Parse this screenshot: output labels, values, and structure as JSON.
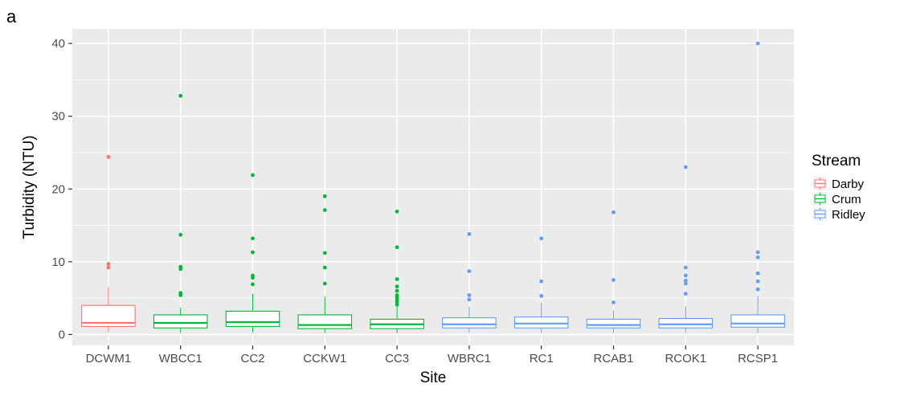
{
  "panel_label": "a",
  "chart_data": {
    "type": "box",
    "xlabel": "Site",
    "ylabel": "Turbidity (NTU)",
    "ylim": [
      -1.5,
      42
    ],
    "yticks": [
      0,
      10,
      20,
      30,
      40
    ],
    "grid": true,
    "legend": {
      "title": "Stream",
      "position": "right",
      "entries": [
        {
          "name": "Darby",
          "color": "#F8766D"
        },
        {
          "name": "Crum",
          "color": "#00BA38"
        },
        {
          "name": "Ridley",
          "color": "#619CFF"
        }
      ]
    },
    "categories": [
      "DCWM1",
      "WBCC1",
      "CC2",
      "CCKW1",
      "CC3",
      "WBRC1",
      "RC1",
      "RCAB1",
      "RCOK1",
      "RCSP1"
    ],
    "boxes": [
      {
        "site": "DCWM1",
        "stream": "Darby",
        "q1": 1.1,
        "median": 1.6,
        "q3": 4.0,
        "whisker_low": 0.3,
        "whisker_high": 6.5,
        "outliers": [
          9.2,
          9.7,
          24.4
        ]
      },
      {
        "site": "WBCC1",
        "stream": "Crum",
        "q1": 0.9,
        "median": 1.6,
        "q3": 2.7,
        "whisker_low": 0.2,
        "whisker_high": 3.7,
        "outliers": [
          5.4,
          5.7,
          9.0,
          9.3,
          13.7,
          32.8
        ]
      },
      {
        "site": "CC2",
        "stream": "Crum",
        "q1": 1.1,
        "median": 1.7,
        "q3": 3.2,
        "whisker_low": 0.3,
        "whisker_high": 5.6,
        "outliers": [
          6.9,
          7.8,
          8.1,
          11.3,
          13.2,
          21.9
        ]
      },
      {
        "site": "CCKW1",
        "stream": "Crum",
        "q1": 0.8,
        "median": 1.3,
        "q3": 2.7,
        "whisker_low": 0.2,
        "whisker_high": 5.2,
        "outliers": [
          7.0,
          9.2,
          11.2,
          17.1,
          19.0
        ]
      },
      {
        "site": "CC3",
        "stream": "Crum",
        "q1": 0.8,
        "median": 1.4,
        "q3": 2.1,
        "whisker_low": 0.2,
        "whisker_high": 3.8,
        "outliers": [
          4.1,
          4.5,
          4.8,
          5.1,
          5.4,
          6.0,
          6.6,
          7.6,
          12.0,
          16.9
        ]
      },
      {
        "site": "WBRC1",
        "stream": "Ridley",
        "q1": 0.9,
        "median": 1.4,
        "q3": 2.3,
        "whisker_low": 0.2,
        "whisker_high": 3.8,
        "outliers": [
          4.8,
          5.4,
          8.7,
          13.8
        ]
      },
      {
        "site": "RC1",
        "stream": "Ridley",
        "q1": 0.9,
        "median": 1.5,
        "q3": 2.4,
        "whisker_low": 0.2,
        "whisker_high": 4.4,
        "outliers": [
          5.3,
          7.3,
          13.2
        ]
      },
      {
        "site": "RCAB1",
        "stream": "Ridley",
        "q1": 0.9,
        "median": 1.3,
        "q3": 2.1,
        "whisker_low": 0.2,
        "whisker_high": 3.3,
        "outliers": [
          4.4,
          7.5,
          16.8
        ]
      },
      {
        "site": "RCOK1",
        "stream": "Ridley",
        "q1": 0.9,
        "median": 1.4,
        "q3": 2.2,
        "whisker_low": 0.2,
        "whisker_high": 3.9,
        "outliers": [
          5.6,
          7.0,
          7.4,
          8.1,
          9.2,
          23.0
        ]
      },
      {
        "site": "RCSP1",
        "stream": "Ridley",
        "q1": 1.0,
        "median": 1.5,
        "q3": 2.7,
        "whisker_low": 0.2,
        "whisker_high": 5.3,
        "outliers": [
          6.2,
          7.3,
          8.4,
          10.6,
          11.3,
          40.0
        ]
      }
    ]
  }
}
